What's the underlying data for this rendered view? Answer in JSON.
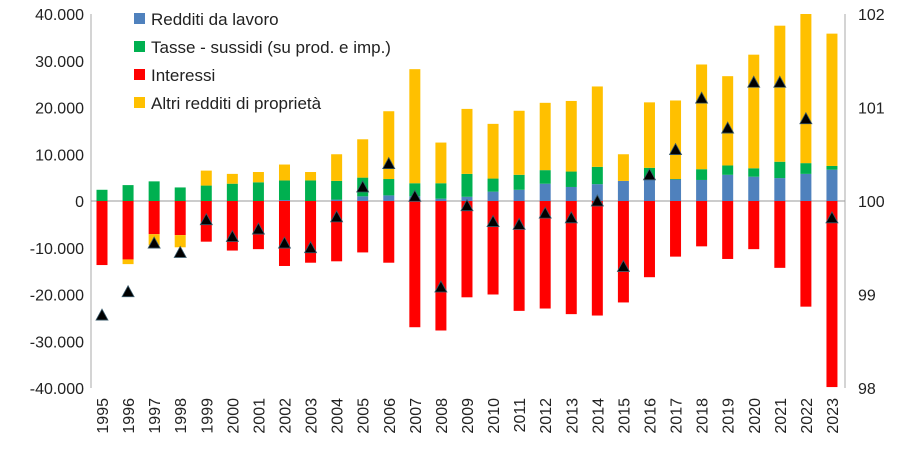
{
  "chart_data": {
    "type": "bar",
    "stacked": true,
    "categories": [
      "1995",
      "1996",
      "1997",
      "1998",
      "1999",
      "2000",
      "2001",
      "2002",
      "2003",
      "2004",
      "2005",
      "2006",
      "2007",
      "2008",
      "2009",
      "2010",
      "2011",
      "2012",
      "2013",
      "2014",
      "2015",
      "2016",
      "2017",
      "2018",
      "2019",
      "2020",
      "2021",
      "2022",
      "2023"
    ],
    "series": [
      {
        "name": "Redditi da lavoro",
        "color": "#4f81bd",
        "axis": "left",
        "values": [
          0,
          0,
          0,
          0,
          0,
          0,
          0,
          200,
          0,
          300,
          1000,
          1200,
          1000,
          500,
          900,
          2000,
          2400,
          3700,
          3000,
          3600,
          4300,
          4500,
          4600,
          4500,
          5600,
          5200,
          4900,
          5800,
          6700
        ]
      },
      {
        "name": "Tasse - sussidi (su prod. e imp.)",
        "color": "#00b050",
        "axis": "left",
        "values": [
          2400,
          3400,
          4200,
          2900,
          3300,
          3700,
          4000,
          4200,
          4400,
          4000,
          4000,
          3500,
          2800,
          3300,
          4900,
          2800,
          3200,
          2900,
          3300,
          3700,
          0,
          2600,
          100,
          2300,
          2000,
          1800,
          3500,
          2300,
          800
        ]
      },
      {
        "name": "Interessi",
        "color": "#ff0000",
        "axis": "left",
        "values": [
          -13700,
          -12500,
          -7100,
          -7300,
          -8700,
          -10600,
          -10300,
          -13900,
          -13200,
          -12900,
          -11000,
          -13200,
          -27000,
          -27700,
          -20600,
          -20000,
          -23500,
          -23000,
          -24200,
          -24500,
          -21700,
          -16300,
          -11900,
          -9700,
          -12400,
          -10300,
          -14300,
          -22600,
          -39800
        ]
      },
      {
        "name": "Altri redditi di proprietà",
        "color": "#ffc000",
        "axis": "left",
        "values": [
          0,
          -1000,
          -2400,
          -2600,
          3200,
          2100,
          2200,
          3400,
          1800,
          5700,
          8200,
          14500,
          24400,
          8700,
          13900,
          11700,
          13700,
          14400,
          15100,
          17200,
          5700,
          14000,
          16800,
          22400,
          19100,
          24300,
          29100,
          31900,
          28300
        ]
      },
      {
        "name": "",
        "color": "#000000",
        "axis": "right",
        "marker": "triangle",
        "values": [
          98.78,
          99.03,
          99.55,
          99.45,
          99.8,
          99.62,
          99.7,
          99.55,
          99.5,
          99.83,
          100.15,
          100.4,
          100.05,
          99.08,
          99.95,
          99.78,
          99.75,
          99.87,
          99.82,
          100.0,
          99.3,
          100.28,
          100.55,
          101.1,
          100.78,
          101.27,
          101.27,
          100.88,
          99.82
        ]
      }
    ],
    "ylim": [
      -40000,
      40000
    ],
    "yticks": [
      "-40.000",
      "-30.000",
      "-20.000",
      "-10.000",
      "0",
      "10.000",
      "20.000",
      "30.000",
      "40.000"
    ],
    "y2lim": [
      98,
      102
    ],
    "y2ticks": [
      "98",
      "99",
      "100",
      "101",
      "102"
    ],
    "legend": "top-left",
    "grid": false
  }
}
